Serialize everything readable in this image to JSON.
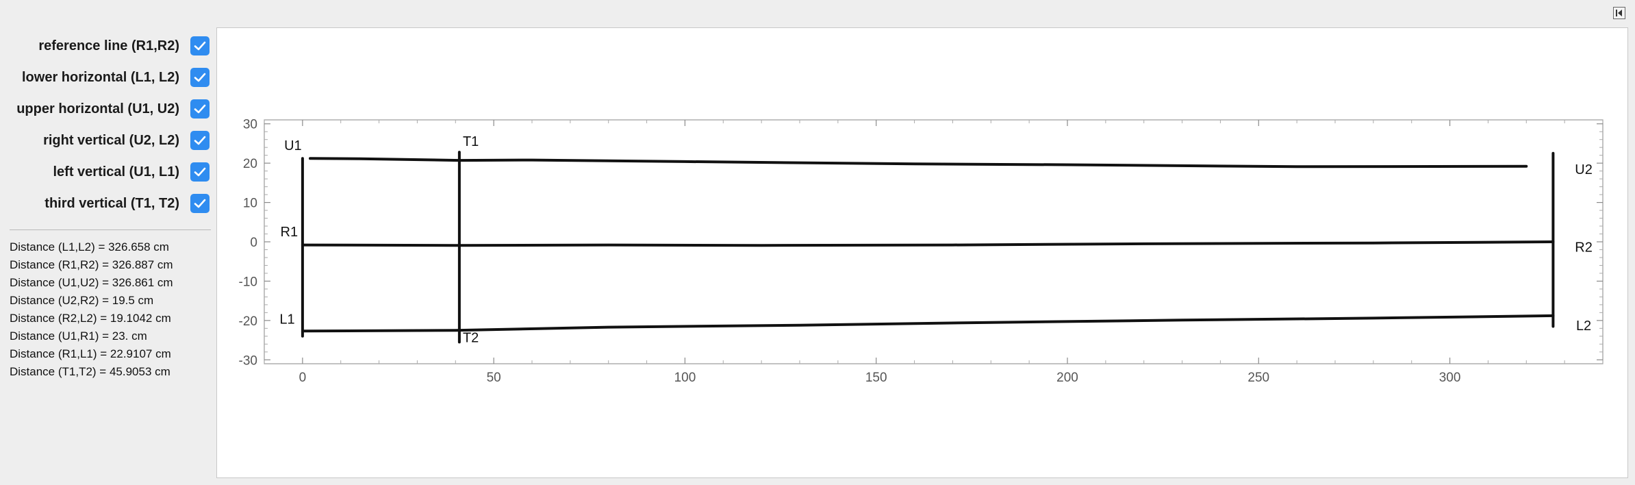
{
  "controls": [
    {
      "id": "reference",
      "label": "reference line (R1,R2)",
      "checked": true
    },
    {
      "id": "lower",
      "label": "lower horizontal (L1, L2)",
      "checked": true
    },
    {
      "id": "upper",
      "label": "upper horizontal (U1, U2)",
      "checked": true
    },
    {
      "id": "right",
      "label": "right vertical (U2, L2)",
      "checked": true
    },
    {
      "id": "left",
      "label": "left vertical (U1, L1)",
      "checked": true
    },
    {
      "id": "third",
      "label": "third vertical (T1, T2)",
      "checked": true
    }
  ],
  "distances": [
    "Distance (L1,L2) =  326.658 cm",
    "Distance (R1,R2) =  326.887 cm",
    "Distance (U1,U2) =  326.861 cm",
    "Distance (U2,R2) =  19.5 cm",
    "Distance (R2,L2) =  19.1042 cm",
    "Distance (U1,R1) =  23. cm",
    "Distance (R1,L1) =  22.9107 cm",
    "Distance (T1,T2) =  45.9053 cm"
  ],
  "chart_data": {
    "type": "line",
    "xlim": [
      -10,
      340
    ],
    "ylim": [
      -31,
      31
    ],
    "x_ticks": [
      0,
      50,
      100,
      150,
      200,
      250,
      300
    ],
    "y_ticks": [
      -30,
      -20,
      -10,
      0,
      10,
      20,
      30
    ],
    "frame": true,
    "grid": false,
    "series": [
      {
        "points": [
          [
            2,
            21.2
          ],
          [
            15,
            21.1
          ],
          [
            41,
            20.7
          ],
          [
            60,
            20.8
          ],
          [
            100,
            20.4
          ],
          [
            160,
            19.8
          ],
          [
            200,
            19.6
          ],
          [
            260,
            19.1
          ],
          [
            320,
            19.2
          ]
        ]
      },
      {
        "points": [
          [
            0,
            -0.8
          ],
          [
            40,
            -0.9
          ],
          [
            80,
            -0.8
          ],
          [
            120,
            -0.9
          ],
          [
            170,
            -0.8
          ],
          [
            220,
            -0.5
          ],
          [
            280,
            -0.3
          ],
          [
            327,
            0
          ]
        ]
      },
      {
        "points": [
          [
            0,
            -22.7
          ],
          [
            40,
            -22.5
          ],
          [
            80,
            -21.7
          ],
          [
            130,
            -21.2
          ],
          [
            180,
            -20.5
          ],
          [
            230,
            -19.9
          ],
          [
            280,
            -19.4
          ],
          [
            327,
            -18.8
          ]
        ]
      },
      {
        "points": [
          [
            0,
            21.2
          ],
          [
            0,
            -24
          ]
        ]
      },
      {
        "points": [
          [
            41,
            22.8
          ],
          [
            41,
            -25.5
          ]
        ]
      },
      {
        "points": [
          [
            327,
            22.5
          ],
          [
            327,
            -21.5
          ]
        ]
      }
    ],
    "point_labels": [
      {
        "text": "U1",
        "x": -2.5,
        "y": 23.3
      },
      {
        "text": "T1",
        "x": 44,
        "y": 24.4
      },
      {
        "text": "U2",
        "x": 335,
        "y": 17.2
      },
      {
        "text": "R1",
        "x": -3.5,
        "y": 1.4
      },
      {
        "text": "R2",
        "x": 335,
        "y": -2.5
      },
      {
        "text": "L1",
        "x": -4,
        "y": -20.8
      },
      {
        "text": "T2",
        "x": 44,
        "y": -25.5
      },
      {
        "text": "L2",
        "x": 335,
        "y": -22.5
      }
    ]
  }
}
